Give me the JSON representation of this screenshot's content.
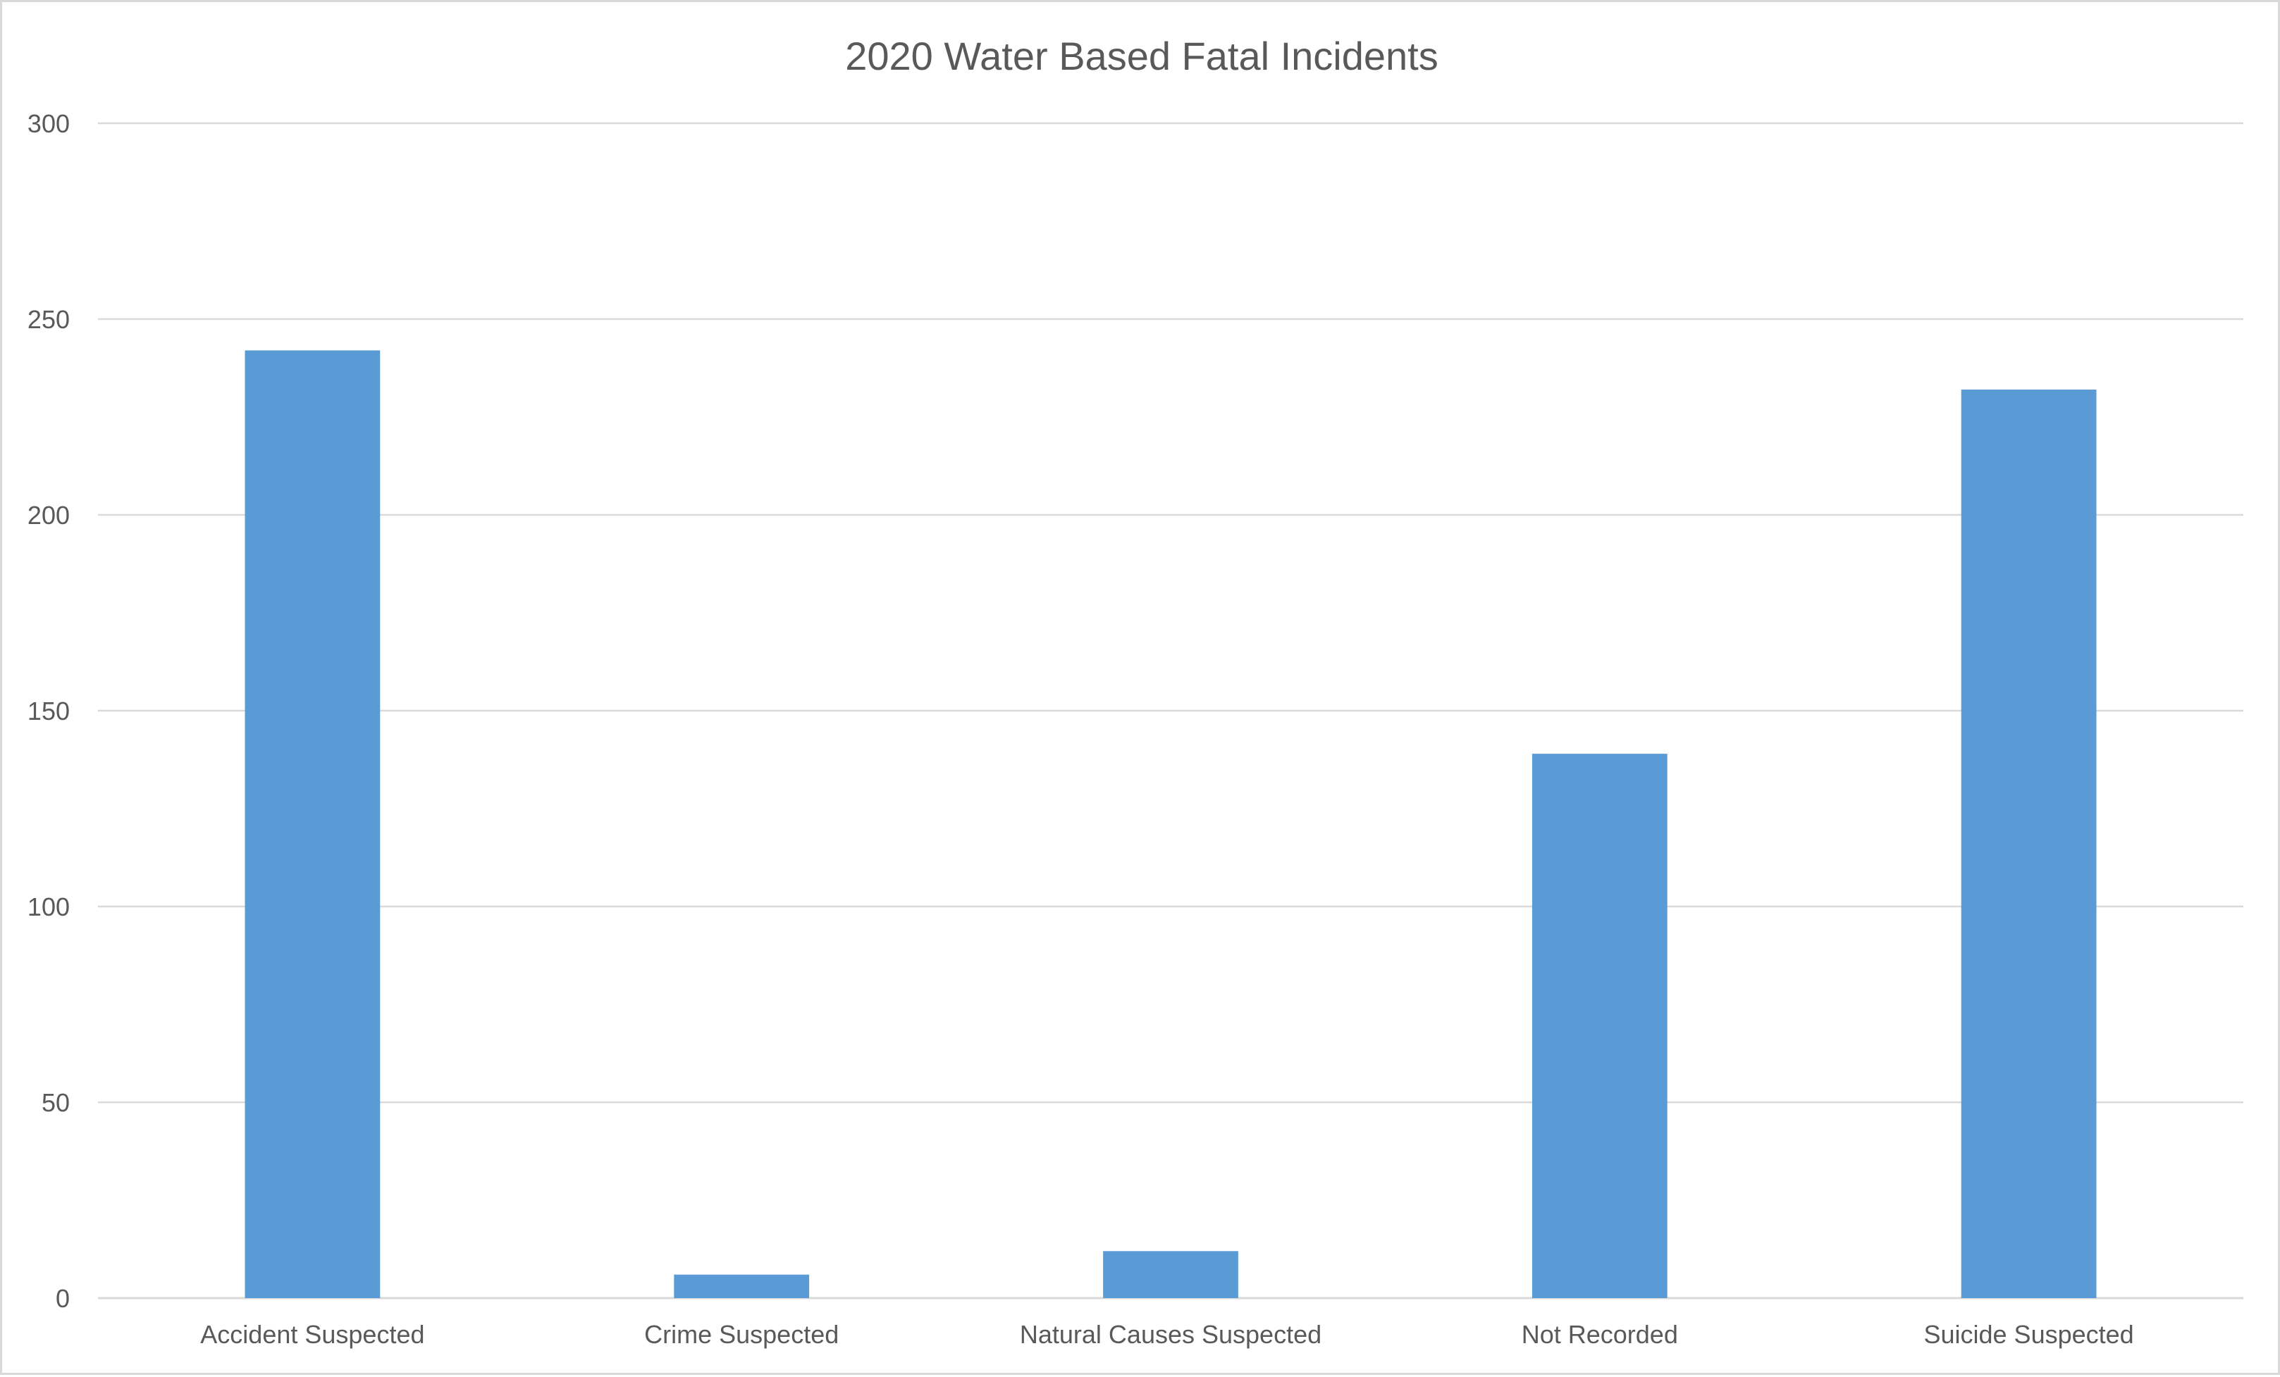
{
  "chart_data": {
    "type": "bar",
    "title": "2020 Water Based Fatal Incidents",
    "xlabel": "",
    "ylabel": "",
    "categories": [
      "Accident Suspected",
      "Crime Suspected",
      "Natural Causes Suspected",
      "Not Recorded",
      "Suicide Suspected"
    ],
    "values": [
      242,
      6,
      12,
      139,
      232
    ],
    "ylim": [
      0,
      300
    ],
    "yticks": [
      "0",
      "50",
      "100",
      "150",
      "200",
      "250",
      "300"
    ],
    "grid": true,
    "legend": "none",
    "colors": {
      "bar": "#5b9bd5",
      "grid": "#d9d9d9",
      "text": "#595959",
      "border": "#d9d9d9"
    }
  }
}
